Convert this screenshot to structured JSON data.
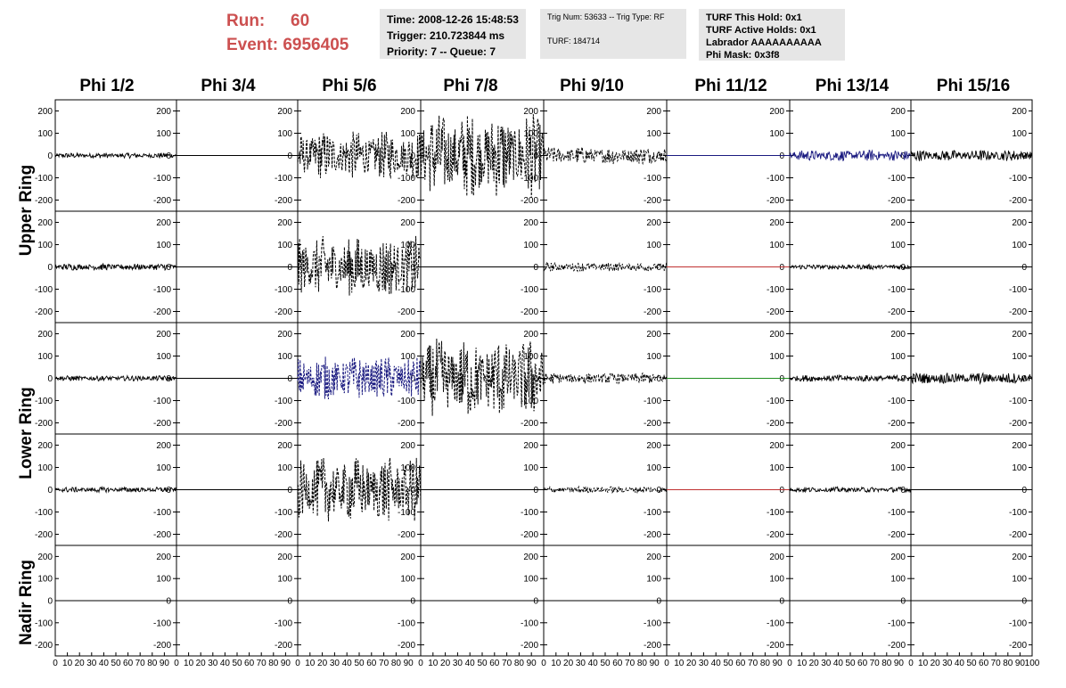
{
  "header": {
    "run_label": "Run:",
    "run_value": "60",
    "event_label": "Event:",
    "event_value": "6956405",
    "time_line": "Time: 2008-12-26 15:48:53",
    "trigger_line": "Trigger: 210.723844 ms",
    "priority_line": "Priority: 7 -- Queue: 7",
    "trig_line": "Trig Num: 53633 -- Trig Type: RF",
    "turf_line": "TURF: 184714",
    "turf_hold_line": "TURF This Hold: 0x1",
    "turf_active_line": "TURF Active Holds: 0x1",
    "labrador_line": "Labrador AAAAAAAAAA",
    "phi_mask_line": "Phi Mask: 0x3f8"
  },
  "columns": [
    "Phi 1/2",
    "Phi 3/4",
    "Phi 5/6",
    "Phi 7/8",
    "Phi 9/10",
    "Phi 11/12",
    "Phi 13/14",
    "Phi 15/16"
  ],
  "rows": [
    {
      "label": "Upper Ring",
      "rows": [
        0,
        1
      ]
    },
    {
      "label": "Lower Ring",
      "rows": [
        2,
        3
      ]
    },
    {
      "label": "Nadir Ring",
      "rows": [
        4
      ]
    }
  ],
  "chart_data": {
    "type": "line",
    "x_range": [
      0,
      100
    ],
    "y_range": [
      -250,
      250
    ],
    "x_tick_labels": [
      "0",
      "10",
      "20",
      "30",
      "40",
      "50",
      "60",
      "70",
      "80",
      "90",
      "100"
    ],
    "y_tick_labels": [
      "-200",
      "-100",
      "0",
      "100",
      "200"
    ],
    "colors": {
      "black": "#000000",
      "blue": "#1a1a80",
      "red": "#c03030",
      "green": "#209020"
    },
    "panels": [
      [
        {
          "amp": 12,
          "style": "solid",
          "color": "black"
        },
        {
          "amp": 0,
          "style": "solid",
          "color": "black"
        },
        {
          "amp": 110,
          "style": "dashed",
          "color": "black"
        },
        {
          "amp": 195,
          "style": "dashed",
          "color": "black"
        },
        {
          "amp": 40,
          "style": "dashed",
          "color": "black"
        },
        {
          "amp": 0,
          "style": "solid",
          "color": "blue"
        },
        {
          "amp": 25,
          "style": "solid",
          "color": "blue"
        },
        {
          "amp": 25,
          "style": "solid",
          "color": "black"
        }
      ],
      [
        {
          "amp": 15,
          "style": "solid",
          "color": "black"
        },
        {
          "amp": 0,
          "style": "solid",
          "color": "black"
        },
        {
          "amp": 140,
          "style": "dashed",
          "color": "black"
        },
        {
          "amp": 0,
          "style": "solid",
          "color": "black"
        },
        {
          "amp": 20,
          "style": "dashed",
          "color": "black"
        },
        {
          "amp": 0,
          "style": "solid",
          "color": "red"
        },
        {
          "amp": 12,
          "style": "solid",
          "color": "black"
        },
        {
          "amp": 0,
          "style": "solid",
          "color": "black"
        }
      ],
      [
        {
          "amp": 12,
          "style": "solid",
          "color": "black"
        },
        {
          "amp": 0,
          "style": "solid",
          "color": "black"
        },
        {
          "amp": 100,
          "style": "dashed",
          "color": "blue"
        },
        {
          "amp": 180,
          "style": "dashed",
          "color": "black"
        },
        {
          "amp": 25,
          "style": "dashed",
          "color": "black"
        },
        {
          "amp": 0,
          "style": "solid",
          "color": "green"
        },
        {
          "amp": 15,
          "style": "solid",
          "color": "black"
        },
        {
          "amp": 25,
          "style": "solid",
          "color": "black"
        }
      ],
      [
        {
          "amp": 12,
          "style": "solid",
          "color": "black"
        },
        {
          "amp": 0,
          "style": "solid",
          "color": "black"
        },
        {
          "amp": 150,
          "style": "dashed",
          "color": "black"
        },
        {
          "amp": 0,
          "style": "solid",
          "color": "black"
        },
        {
          "amp": 15,
          "style": "dashed",
          "color": "black"
        },
        {
          "amp": 0,
          "style": "solid",
          "color": "red"
        },
        {
          "amp": 12,
          "style": "solid",
          "color": "black"
        },
        {
          "amp": 0,
          "style": "solid",
          "color": "black"
        }
      ],
      [
        {
          "amp": 0,
          "style": "solid",
          "color": "black"
        },
        {
          "amp": 0,
          "style": "solid",
          "color": "black"
        },
        {
          "amp": 0,
          "style": "solid",
          "color": "black"
        },
        {
          "amp": 0,
          "style": "solid",
          "color": "black"
        },
        {
          "amp": 0,
          "style": "solid",
          "color": "black"
        },
        {
          "amp": 0,
          "style": "solid",
          "color": "black"
        },
        {
          "amp": 0,
          "style": "solid",
          "color": "black"
        },
        {
          "amp": 0,
          "style": "solid",
          "color": "black"
        }
      ]
    ]
  }
}
